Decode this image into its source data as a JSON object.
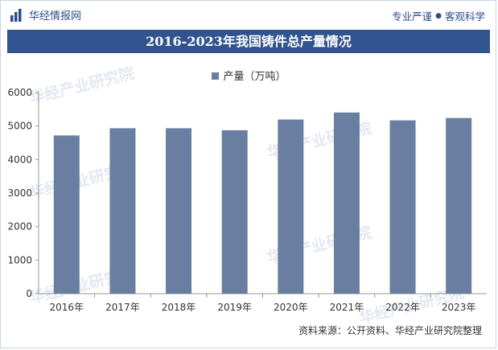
{
  "header": {
    "brand": "华经情报网",
    "slogan_left": "专业严谨",
    "slogan_right": "客观科学"
  },
  "watermark": "华经产业研究院",
  "source_note": "资料来源：公开资料、华经产业研究院整理",
  "colors": {
    "title_bg": "#31548f",
    "bar": "#6a7ea1",
    "brand_text": "#2d4b8c"
  },
  "chart_data": {
    "type": "bar",
    "title": "2016-2023年我国铸件总产量情况",
    "categories": [
      "2016年",
      "2017年",
      "2018年",
      "2019年",
      "2020年",
      "2021年",
      "2022年",
      "2023年"
    ],
    "series": [
      {
        "name": "产量（万吨）",
        "values": [
          4720,
          4935,
          4935,
          4875,
          5195,
          5405,
          5170,
          5240
        ]
      }
    ],
    "ylim": [
      0,
      6000
    ],
    "yticks": [
      0,
      1000,
      2000,
      3000,
      4000,
      5000,
      6000
    ],
    "grid": false,
    "legend_position": "top-center"
  }
}
